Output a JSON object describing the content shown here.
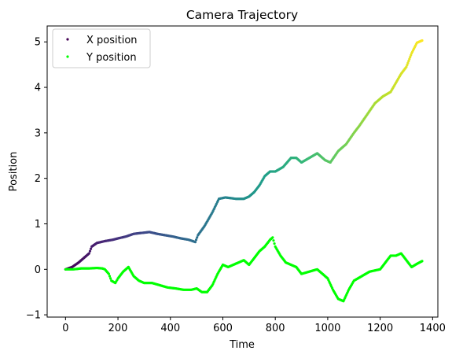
{
  "chart_data": {
    "type": "scatter",
    "title": "Camera Trajectory",
    "xlabel": "Time",
    "ylabel": "Position",
    "xlim": [
      -70,
      1420
    ],
    "ylim": [
      -1.05,
      5.35
    ],
    "xticks": [
      0,
      200,
      400,
      600,
      800,
      1000,
      1200,
      1400
    ],
    "yticks": [
      -1,
      0,
      1,
      2,
      3,
      4,
      5
    ],
    "legend_position": "upper-left",
    "grid": false,
    "series": [
      {
        "name": "X position",
        "colormap": "viridis",
        "color_by": "x",
        "x": [
          0,
          25,
          50,
          70,
          90,
          100,
          120,
          150,
          180,
          200,
          230,
          260,
          290,
          320,
          350,
          380,
          410,
          440,
          470,
          495,
          505,
          530,
          560,
          585,
          610,
          650,
          680,
          700,
          720,
          740,
          760,
          780,
          800,
          830,
          860,
          880,
          900,
          930,
          960,
          990,
          1010,
          1040,
          1070,
          1100,
          1120,
          1150,
          1180,
          1210,
          1240,
          1260,
          1280,
          1300,
          1320,
          1340,
          1360
        ],
        "y": [
          0.0,
          0.05,
          0.15,
          0.25,
          0.35,
          0.5,
          0.58,
          0.62,
          0.65,
          0.68,
          0.72,
          0.78,
          0.8,
          0.82,
          0.78,
          0.75,
          0.72,
          0.68,
          0.65,
          0.6,
          0.75,
          0.95,
          1.25,
          1.55,
          1.58,
          1.55,
          1.55,
          1.6,
          1.7,
          1.85,
          2.05,
          2.15,
          2.15,
          2.25,
          2.45,
          2.45,
          2.35,
          2.45,
          2.55,
          2.4,
          2.35,
          2.6,
          2.75,
          3.0,
          3.15,
          3.4,
          3.65,
          3.8,
          3.9,
          4.1,
          4.3,
          4.45,
          4.75,
          4.98,
          5.03
        ]
      },
      {
        "name": "Y position",
        "color": "#00ff00",
        "x": [
          0,
          30,
          60,
          90,
          120,
          140,
          150,
          165,
          175,
          190,
          200,
          220,
          240,
          260,
          280,
          300,
          330,
          360,
          390,
          420,
          450,
          480,
          500,
          520,
          540,
          560,
          580,
          600,
          620,
          640,
          660,
          680,
          700,
          720,
          740,
          760,
          780,
          790,
          800,
          820,
          840,
          860,
          880,
          900,
          930,
          960,
          1000,
          1020,
          1040,
          1060,
          1080,
          1100,
          1130,
          1160,
          1200,
          1220,
          1240,
          1260,
          1280,
          1300,
          1320,
          1340,
          1360
        ],
        "y": [
          0.0,
          0.0,
          0.02,
          0.02,
          0.03,
          0.02,
          0.0,
          -0.1,
          -0.25,
          -0.3,
          -0.2,
          -0.05,
          0.05,
          -0.15,
          -0.25,
          -0.3,
          -0.3,
          -0.35,
          -0.4,
          -0.42,
          -0.45,
          -0.45,
          -0.42,
          -0.5,
          -0.5,
          -0.35,
          -0.1,
          0.1,
          0.05,
          0.1,
          0.15,
          0.2,
          0.1,
          0.25,
          0.4,
          0.5,
          0.65,
          0.7,
          0.5,
          0.3,
          0.15,
          0.1,
          0.05,
          -0.1,
          -0.05,
          0.0,
          -0.2,
          -0.45,
          -0.65,
          -0.7,
          -0.45,
          -0.25,
          -0.15,
          -0.05,
          0.0,
          0.15,
          0.3,
          0.3,
          0.35,
          0.2,
          0.05,
          0.12,
          0.18
        ]
      }
    ]
  }
}
